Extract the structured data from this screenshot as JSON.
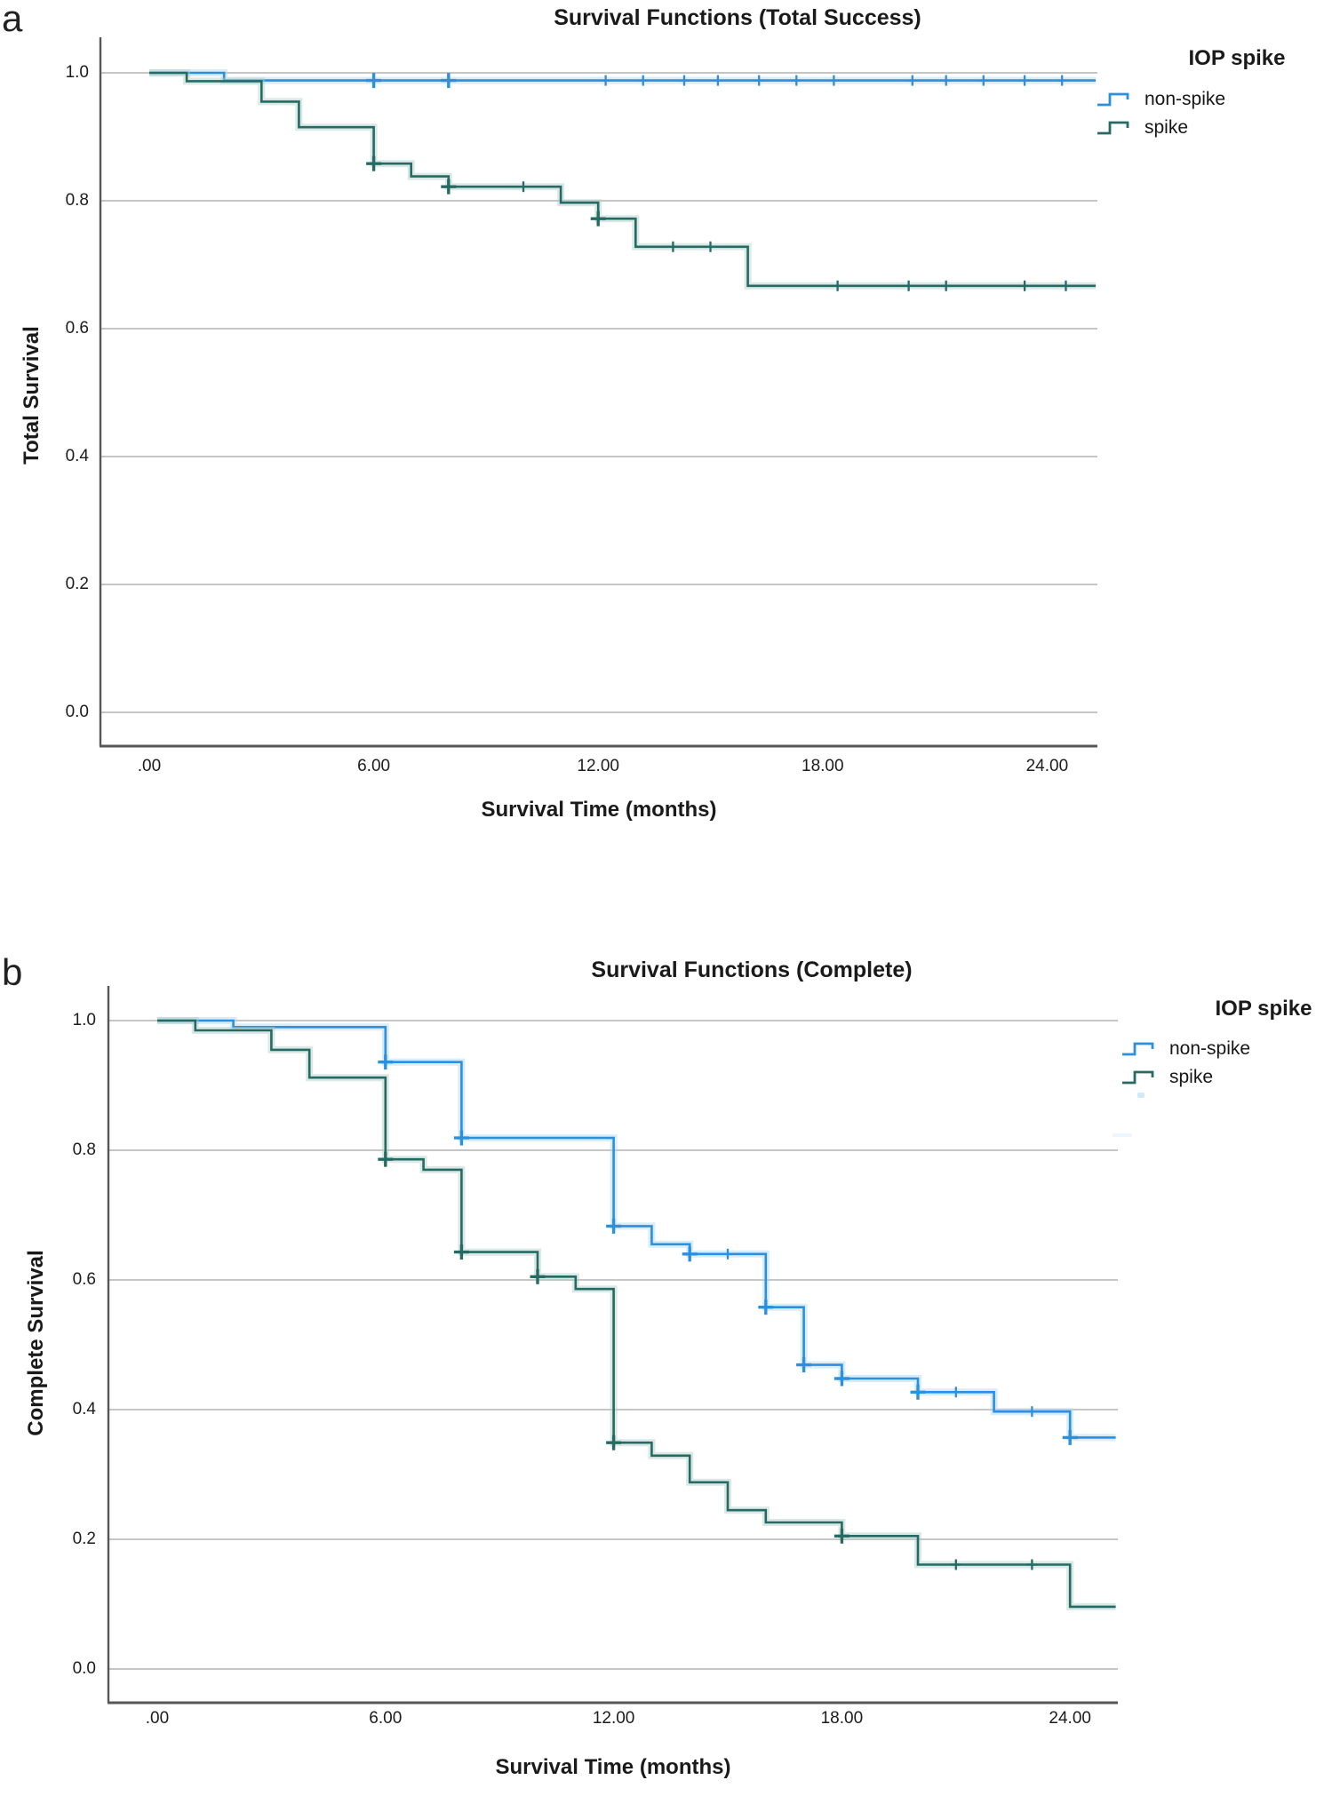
{
  "colors": {
    "non_spike": "#2b90dd",
    "spike": "#256b64",
    "non_spike_halo": "#a9d6f2",
    "spike_halo": "#adccc7",
    "grid": "#c6c6c6",
    "axis": "#565656",
    "text": "#1a1a1a"
  },
  "panels": [
    {
      "letter": "a",
      "title": "Survival Functions (Total Success)",
      "x_title": "Survival Time (months)",
      "y_title": "Total Survival",
      "legend": {
        "title": "IOP spike",
        "items": [
          {
            "label": "non-spike"
          },
          {
            "label": "spike"
          }
        ]
      }
    },
    {
      "letter": "b",
      "title": "Survival Functions (Complete)",
      "x_title": "Survival Time (months)",
      "y_title": "Complete Survival",
      "legend": {
        "title": "IOP spike",
        "items": [
          {
            "label": "non-spike"
          },
          {
            "label": "spike"
          }
        ]
      }
    }
  ],
  "chart_data": [
    {
      "type": "line",
      "subtype": "kaplan-meier-step",
      "title": "Survival Functions (Total Success)",
      "xlabel": "Survival Time (months)",
      "ylabel": "Total Survival",
      "xlim": [
        -1.3,
        25.4
      ],
      "ylim": [
        0.0,
        1.06
      ],
      "grid": "horizontal",
      "legend_title": "IOP spike",
      "legend_position": "top-right",
      "x_ticks": [
        {
          "value": 0,
          "label": ".00"
        },
        {
          "value": 6,
          "label": "6.00"
        },
        {
          "value": 12,
          "label": "12.00"
        },
        {
          "value": 18,
          "label": "18.00"
        },
        {
          "value": 24,
          "label": "24.00"
        }
      ],
      "y_ticks": [
        {
          "value": 0.0,
          "label": "0.0"
        },
        {
          "value": 0.2,
          "label": "0.2"
        },
        {
          "value": 0.4,
          "label": "0.4"
        },
        {
          "value": 0.6,
          "label": "0.6"
        },
        {
          "value": 0.8,
          "label": "0.8"
        },
        {
          "value": 1.0,
          "label": "1.0"
        }
      ],
      "series": [
        {
          "name": "non-spike",
          "color": "#2b90dd",
          "halo": "#a9d6f2",
          "steps": [
            [
              0,
              1.0
            ],
            [
              2,
              1.0
            ],
            [
              2,
              0.988
            ],
            [
              25.3,
              0.988
            ]
          ],
          "censors": [
            [
              6,
              0.988,
              "l"
            ],
            [
              8,
              0.988,
              "l"
            ],
            [
              12.2,
              0.988,
              "s"
            ],
            [
              13.2,
              0.988,
              "s"
            ],
            [
              14.3,
              0.988,
              "s"
            ],
            [
              15.2,
              0.988,
              "s"
            ],
            [
              16.3,
              0.988,
              "s"
            ],
            [
              17.3,
              0.988,
              "s"
            ],
            [
              18.3,
              0.988,
              "s"
            ],
            [
              20.4,
              0.988,
              "s"
            ],
            [
              21.3,
              0.988,
              "s"
            ],
            [
              22.3,
              0.988,
              "s"
            ],
            [
              23.4,
              0.988,
              "s"
            ],
            [
              24.4,
              0.988,
              "s"
            ]
          ]
        },
        {
          "name": "spike",
          "color": "#256b64",
          "halo": "#adccc7",
          "steps": [
            [
              0,
              1.0
            ],
            [
              1,
              1.0
            ],
            [
              1,
              0.987
            ],
            [
              3,
              0.987
            ],
            [
              3,
              0.955
            ],
            [
              4,
              0.955
            ],
            [
              4,
              0.915
            ],
            [
              6,
              0.915
            ],
            [
              6,
              0.858
            ],
            [
              7,
              0.858
            ],
            [
              7,
              0.838
            ],
            [
              8,
              0.838
            ],
            [
              8,
              0.822
            ],
            [
              11,
              0.822
            ],
            [
              11,
              0.797
            ],
            [
              12,
              0.797
            ],
            [
              12,
              0.772
            ],
            [
              13,
              0.772
            ],
            [
              13,
              0.728
            ],
            [
              16,
              0.728
            ],
            [
              16,
              0.667
            ],
            [
              25.3,
              0.667
            ]
          ],
          "censors": [
            [
              6,
              0.858,
              "l"
            ],
            [
              8,
              0.822,
              "l"
            ],
            [
              10,
              0.822,
              "s"
            ],
            [
              12,
              0.772,
              "l"
            ],
            [
              14,
              0.728,
              "s"
            ],
            [
              15,
              0.728,
              "s"
            ],
            [
              18.4,
              0.667,
              "s"
            ],
            [
              20.3,
              0.667,
              "s"
            ],
            [
              21.3,
              0.667,
              "s"
            ],
            [
              23.4,
              0.667,
              "s"
            ],
            [
              24.5,
              0.667,
              "s"
            ]
          ]
        }
      ]
    },
    {
      "type": "line",
      "subtype": "kaplan-meier-step",
      "title": "Survival Functions (Complete)",
      "xlabel": "Survival Time (months)",
      "ylabel": "Complete Survival",
      "xlim": [
        -1.3,
        25.3
      ],
      "ylim": [
        0.0,
        1.06
      ],
      "grid": "horizontal",
      "legend_title": "IOP spike",
      "legend_position": "top-right",
      "x_ticks": [
        {
          "value": 0,
          "label": ".00"
        },
        {
          "value": 6,
          "label": "6.00"
        },
        {
          "value": 12,
          "label": "12.00"
        },
        {
          "value": 18,
          "label": "18.00"
        },
        {
          "value": 24,
          "label": "24.00"
        }
      ],
      "y_ticks": [
        {
          "value": 0.0,
          "label": "0.0"
        },
        {
          "value": 0.2,
          "label": "0.2"
        },
        {
          "value": 0.4,
          "label": "0.4"
        },
        {
          "value": 0.6,
          "label": "0.6"
        },
        {
          "value": 0.8,
          "label": "0.8"
        },
        {
          "value": 1.0,
          "label": "1.0"
        }
      ],
      "series": [
        {
          "name": "non-spike",
          "color": "#2b90dd",
          "halo": "#a9d6f2",
          "steps": [
            [
              0,
              1.0
            ],
            [
              2,
              1.0
            ],
            [
              2,
              0.99
            ],
            [
              6,
              0.99
            ],
            [
              6,
              0.936
            ],
            [
              8,
              0.936
            ],
            [
              8,
              0.819
            ],
            [
              12,
              0.819
            ],
            [
              12,
              0.683
            ],
            [
              13,
              0.683
            ],
            [
              13,
              0.655
            ],
            [
              14,
              0.655
            ],
            [
              14,
              0.64
            ],
            [
              16,
              0.64
            ],
            [
              16,
              0.558
            ],
            [
              17,
              0.558
            ],
            [
              17,
              0.469
            ],
            [
              18,
              0.469
            ],
            [
              18,
              0.448
            ],
            [
              20,
              0.448
            ],
            [
              20,
              0.427
            ],
            [
              22,
              0.427
            ],
            [
              22,
              0.397
            ],
            [
              24,
              0.397
            ],
            [
              24,
              0.357
            ],
            [
              25.2,
              0.357
            ]
          ],
          "censors": [
            [
              6,
              0.936,
              "l"
            ],
            [
              8,
              0.819,
              "l"
            ],
            [
              12,
              0.683,
              "l"
            ],
            [
              14,
              0.64,
              "l"
            ],
            [
              15,
              0.64,
              "s"
            ],
            [
              16,
              0.558,
              "l"
            ],
            [
              17,
              0.469,
              "l"
            ],
            [
              18,
              0.448,
              "l"
            ],
            [
              20,
              0.427,
              "l"
            ],
            [
              21,
              0.427,
              "s"
            ],
            [
              23,
              0.397,
              "s"
            ],
            [
              24,
              0.357,
              "l"
            ]
          ]
        },
        {
          "name": "spike",
          "color": "#256b64",
          "halo": "#adccc7",
          "steps": [
            [
              0,
              1.0
            ],
            [
              1,
              1.0
            ],
            [
              1,
              0.985
            ],
            [
              3,
              0.985
            ],
            [
              3,
              0.955
            ],
            [
              4,
              0.955
            ],
            [
              4,
              0.912
            ],
            [
              6,
              0.912
            ],
            [
              6,
              0.786
            ],
            [
              7,
              0.786
            ],
            [
              7,
              0.77
            ],
            [
              8,
              0.77
            ],
            [
              8,
              0.643
            ],
            [
              10,
              0.643
            ],
            [
              10,
              0.605
            ],
            [
              11,
              0.605
            ],
            [
              11,
              0.586
            ],
            [
              12,
              0.586
            ],
            [
              12,
              0.349
            ],
            [
              13,
              0.349
            ],
            [
              13,
              0.329
            ],
            [
              14,
              0.329
            ],
            [
              14,
              0.288
            ],
            [
              15,
              0.288
            ],
            [
              15,
              0.245
            ],
            [
              16,
              0.245
            ],
            [
              16,
              0.226
            ],
            [
              18,
              0.226
            ],
            [
              18,
              0.205
            ],
            [
              20,
              0.205
            ],
            [
              20,
              0.161
            ],
            [
              24,
              0.161
            ],
            [
              24,
              0.096
            ],
            [
              25.2,
              0.096
            ]
          ],
          "censors": [
            [
              6,
              0.786,
              "l"
            ],
            [
              8,
              0.643,
              "l"
            ],
            [
              10,
              0.605,
              "l"
            ],
            [
              12,
              0.349,
              "l"
            ],
            [
              18,
              0.205,
              "l"
            ],
            [
              21,
              0.161,
              "s"
            ],
            [
              23,
              0.161,
              "s"
            ]
          ]
        }
      ]
    }
  ]
}
